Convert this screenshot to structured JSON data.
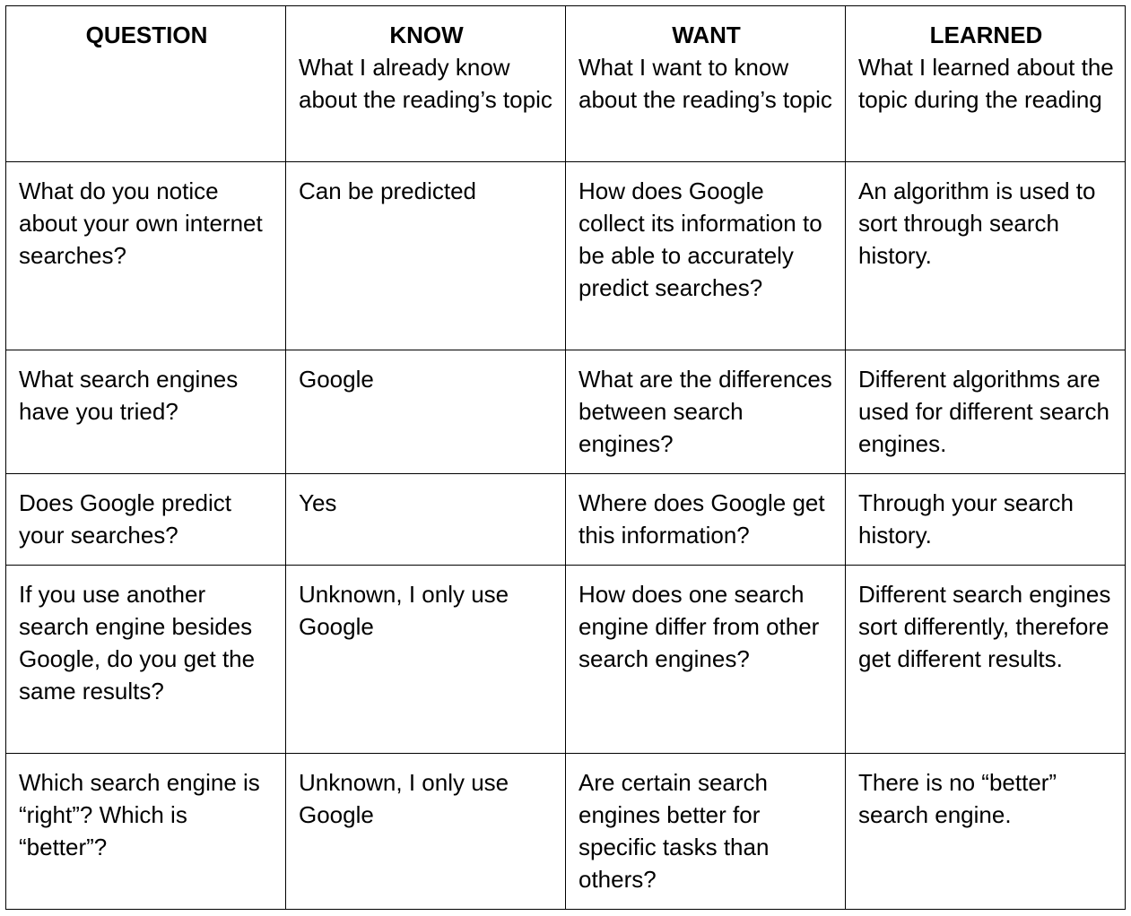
{
  "table": {
    "headers": [
      {
        "title": "QUESTION",
        "subtitle": ""
      },
      {
        "title": "KNOW",
        "subtitle": "What I already know about the reading’s topic"
      },
      {
        "title": "WANT",
        "subtitle": "What I want to know about the reading’s topic"
      },
      {
        "title": "LEARNED",
        "subtitle": "What I learned about the topic during the reading"
      }
    ],
    "rows": [
      [
        "What do you notice about your own internet searches?",
        "Can be predicted",
        "How does Google collect its information to be able to accurately predict searches?",
        "An algorithm is used to sort through search history."
      ],
      [
        "What search engines have you tried?",
        "Google",
        "What are the differences between search engines?",
        "Different algorithms are used for different search engines."
      ],
      [
        "Does Google predict your searches?",
        "Yes",
        "Where does Google get this information?",
        "Through your search history."
      ],
      [
        "If you use another search engine besides Google, do you get the same results?",
        "Unknown, I only use Google",
        "How does one search engine differ from other search engines?",
        "Different search engines sort differently, therefore get different results."
      ],
      [
        "Which search engine is “right”? Which is “better”?",
        "Unknown, I only use Google",
        "Are certain search engines better for specific tasks than others?",
        "There is no “better” search engine."
      ]
    ]
  }
}
